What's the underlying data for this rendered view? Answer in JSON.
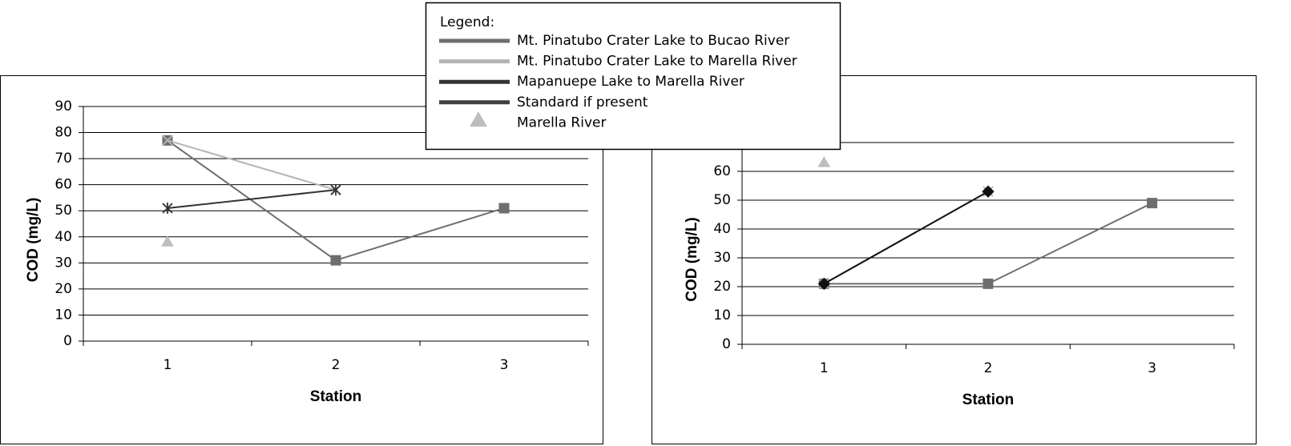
{
  "legend": {
    "title": "Legend:"
  },
  "chart_data": [
    {
      "type": "line",
      "ylabel": "COD (mg/L)",
      "xlabel": "Station",
      "categories": [
        "1",
        "2",
        "3"
      ],
      "ylim": [
        0,
        90
      ],
      "yticks": [
        0,
        10,
        20,
        30,
        40,
        50,
        60,
        70,
        80,
        90
      ],
      "grid": true,
      "series": [
        {
          "name": "Mt. Pinatubo Crater Lake to Bucao River",
          "color": "#6e6e6e",
          "marker": "square",
          "values": [
            77,
            31,
            51
          ]
        },
        {
          "name": "Mt. Pinatubo Crater Lake to Marella River",
          "color": "#b4b4b4",
          "marker": "x",
          "values": [
            77,
            58,
            null
          ]
        },
        {
          "name": "Mapanuepe Lake to Marella River",
          "color": "#333333",
          "marker": "asterisk",
          "values": [
            51,
            58,
            null
          ]
        },
        {
          "name": "Standard if present",
          "color": "#404040",
          "marker": "none",
          "values": [
            null,
            null,
            null
          ]
        },
        {
          "name": "Marella River",
          "color": "#bdbdbd",
          "marker": "triangle",
          "line": false,
          "values": [
            38,
            null,
            null
          ]
        }
      ]
    },
    {
      "type": "line",
      "ylabel": "COD (mg/L)",
      "xlabel": "Station",
      "categories": [
        "1",
        "2",
        "3"
      ],
      "ylim": [
        0,
        70
      ],
      "yticks": [
        0,
        10,
        20,
        30,
        40,
        50,
        60,
        70
      ],
      "grid": true,
      "series": [
        {
          "name": "Mt. Pinatubo Crater Lake to Bucao River",
          "color": "#6e6e6e",
          "marker": "square",
          "values": [
            21,
            21,
            49
          ]
        },
        {
          "name": "Mt. Pinatubo Crater Lake to Marella River",
          "color": "#b4b4b4",
          "marker": "x",
          "values": [
            21,
            53,
            null
          ]
        },
        {
          "name": "Mapanuepe Lake to Marella River",
          "color": "#111111",
          "marker": "diamond",
          "values": [
            21,
            53,
            null
          ]
        },
        {
          "name": "Standard if present",
          "color": "#404040",
          "marker": "none",
          "values": [
            null,
            null,
            null
          ]
        },
        {
          "name": "Marella River",
          "color": "#bdbdbd",
          "marker": "triangle",
          "line": false,
          "values": [
            63,
            null,
            null
          ]
        }
      ]
    }
  ]
}
